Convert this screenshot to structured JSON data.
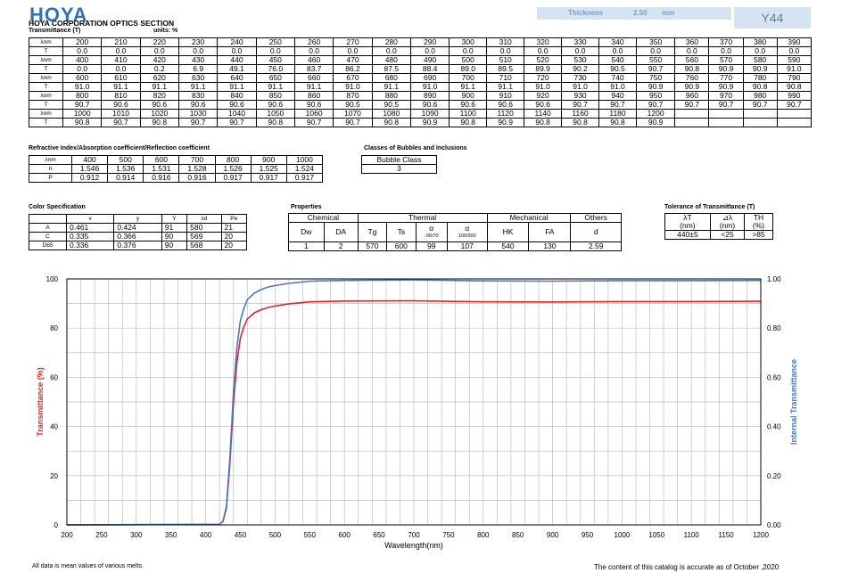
{
  "header": {
    "logo": "HOYA",
    "company": "HOYA CORPORATION OPTICS SECTION",
    "thickness_label": "Thickness",
    "thickness_value": "2.50",
    "thickness_unit": "mm",
    "glass_code": "Y44"
  },
  "transmittance": {
    "title": "Transmittance (T)",
    "units": "units: %",
    "lambda_label": "λnm",
    "t_label": "T",
    "rows": [
      {
        "lambda": [
          "200",
          "210",
          "220",
          "230",
          "240",
          "250",
          "260",
          "270",
          "280",
          "290",
          "300",
          "310",
          "320",
          "330",
          "340",
          "350",
          "360",
          "370",
          "380",
          "390"
        ],
        "t": [
          "0.0",
          "0.0",
          "0.0",
          "0.0",
          "0.0",
          "0.0",
          "0.0",
          "0.0",
          "0.0",
          "0.0",
          "0.0",
          "0.0",
          "0.0",
          "0.0",
          "0.0",
          "0.0",
          "0.0",
          "0.0",
          "0.0",
          "0.0"
        ]
      },
      {
        "lambda": [
          "400",
          "410",
          "420",
          "430",
          "440",
          "450",
          "460",
          "470",
          "480",
          "490",
          "500",
          "510",
          "520",
          "530",
          "540",
          "550",
          "560",
          "570",
          "580",
          "590"
        ],
        "t": [
          "0.0",
          "0.0",
          "0.2",
          "6.9",
          "49.1",
          "76.0",
          "83.7",
          "86.2",
          "87.5",
          "88.4",
          "89.0",
          "89.5",
          "89.9",
          "90.2",
          "90.5",
          "90.7",
          "90.8",
          "90.9",
          "90.9",
          "91.0"
        ]
      },
      {
        "lambda": [
          "600",
          "610",
          "620",
          "630",
          "640",
          "650",
          "660",
          "670",
          "680",
          "690",
          "700",
          "710",
          "720",
          "730",
          "740",
          "750",
          "760",
          "770",
          "780",
          "790"
        ],
        "t": [
          "91.0",
          "91.1",
          "91.1",
          "91.1",
          "91.1",
          "91.1",
          "91.1",
          "91.0",
          "91.1",
          "91.0",
          "91.1",
          "91.1",
          "91.0",
          "91.0",
          "91.0",
          "90.9",
          "90.9",
          "90.9",
          "90.8",
          "90.8"
        ]
      },
      {
        "lambda": [
          "800",
          "810",
          "820",
          "830",
          "840",
          "850",
          "860",
          "870",
          "880",
          "890",
          "900",
          "910",
          "920",
          "930",
          "940",
          "950",
          "960",
          "970",
          "980",
          "990"
        ],
        "t": [
          "90.7",
          "90.6",
          "90.6",
          "90.6",
          "90.6",
          "90.6",
          "90.6",
          "90.5",
          "90.5",
          "90.6",
          "90.6",
          "90.6",
          "90.6",
          "90.7",
          "90.7",
          "90.7",
          "90.7",
          "90.7",
          "90.7",
          "90.7"
        ]
      },
      {
        "lambda": [
          "1000",
          "1010",
          "1020",
          "1030",
          "1040",
          "1050",
          "1060",
          "1070",
          "1080",
          "1090",
          "1100",
          "1120",
          "1140",
          "1160",
          "1180",
          "1200",
          "",
          "",
          "",
          ""
        ],
        "t": [
          "90.8",
          "90.7",
          "90.8",
          "90.7",
          "90.7",
          "90.8",
          "90.7",
          "90.7",
          "90.8",
          "90.9",
          "90.8",
          "90.9",
          "90.8",
          "90.8",
          "90.8",
          "90.9",
          "",
          "",
          "",
          ""
        ]
      }
    ]
  },
  "refractive": {
    "title": "Refractive Index/Absorption coefficient/Reflection coefficient",
    "lambda_label": "λnm",
    "wavelengths": [
      "400",
      "500",
      "600",
      "700",
      "800",
      "900",
      "1000"
    ],
    "n_label": "n",
    "n": [
      "1.546",
      "1.536",
      "1.531",
      "1.528",
      "1.526",
      "1.525",
      "1.524"
    ],
    "p_label": "P",
    "p": [
      "0.912",
      "0.914",
      "0.916",
      "0.916",
      "0.917",
      "0.917",
      "0.917"
    ]
  },
  "bubbles": {
    "title": "Classes of Bubbles and Inclusions",
    "header": "Bubble Class",
    "value": "3"
  },
  "color_spec": {
    "title": "Color Specification",
    "headers": [
      "x",
      "y",
      "Y",
      "λd",
      "Pe"
    ],
    "rows": [
      {
        "label": "A",
        "values": [
          "0.461",
          "0.424",
          "91",
          "580",
          "21"
        ]
      },
      {
        "label": "C",
        "values": [
          "0.335",
          "0.366",
          "90",
          "569",
          "20"
        ]
      },
      {
        "label": "D65",
        "values": [
          "0.336",
          "0.376",
          "90",
          "568",
          "20"
        ]
      }
    ]
  },
  "properties": {
    "title": "Properties",
    "groups": {
      "chemical": "Chemical",
      "thermal": "Thermal",
      "mechanical": "Mechanical",
      "others": "Others"
    },
    "columns": [
      "Dw",
      "DA",
      "Tg",
      "Ts",
      "α",
      "α",
      "HK",
      "FA",
      "d"
    ],
    "alpha_sub1": "-30/70",
    "alpha_sub2": "100/300",
    "values": [
      "1",
      "2",
      "570",
      "600",
      "99",
      "107",
      "540",
      "130",
      "2.59"
    ]
  },
  "tolerance": {
    "title": "Tolerance of Transmittance (T)",
    "headers": [
      "λT",
      "⊿λ",
      "TH"
    ],
    "units": [
      "(nm)",
      "(nm)",
      "(%)"
    ],
    "values": [
      "440±5",
      "<25",
      ">85"
    ]
  },
  "chart_data": {
    "type": "line",
    "xlabel": "Wavelength(nm)",
    "ylabel": "Transmittance (%)",
    "y2label": "Internal Transmittance",
    "xlim": [
      200,
      1200
    ],
    "ylim": [
      0,
      100
    ],
    "y2lim": [
      0,
      1
    ],
    "x_ticks": [
      "200",
      "250",
      "300",
      "350",
      "400",
      "450",
      "500",
      "550",
      "600",
      "650",
      "700",
      "750",
      "800",
      "850",
      "900",
      "950",
      "1000",
      "1050",
      "1100",
      "1150",
      "1200"
    ],
    "y_ticks": [
      "0",
      "20",
      "40",
      "60",
      "80",
      "100"
    ],
    "y2_ticks": [
      "0.00",
      "0.20",
      "0.40",
      "0.60",
      "0.80",
      "1.00"
    ],
    "grid": true,
    "series": [
      {
        "color": "#d42a2a",
        "x": [
          200,
          420,
          425,
          430,
          435,
          440,
          445,
          450,
          455,
          460,
          470,
          480,
          490,
          500,
          520,
          550,
          600,
          700,
          800,
          900,
          1000,
          1100,
          1200
        ],
        "y": [
          0,
          0.2,
          1.5,
          6.9,
          25,
          49.1,
          66,
          76.0,
          80.5,
          83.7,
          86.2,
          87.5,
          88.4,
          89.0,
          89.9,
          90.7,
          91.0,
          91.1,
          90.7,
          90.6,
          90.8,
          90.8,
          90.9
        ]
      },
      {
        "color": "#4a78b8",
        "x": [
          200,
          420,
          425,
          430,
          435,
          440,
          445,
          450,
          455,
          460,
          470,
          480,
          490,
          500,
          520,
          550,
          600,
          700,
          800,
          900,
          1000,
          1100,
          1200
        ],
        "y": [
          0,
          0.2,
          1.6,
          7.6,
          27.5,
          53.6,
          72.2,
          83.0,
          88.0,
          91.6,
          94.2,
          95.7,
          96.7,
          97.3,
          98.2,
          99.1,
          99.4,
          99.6,
          99.2,
          99.1,
          99.3,
          99.3,
          99.4
        ]
      }
    ]
  },
  "footer": {
    "left": "All data is mean values of various melts.",
    "right": "The content of this catalog is accurate as of October ,2020"
  }
}
